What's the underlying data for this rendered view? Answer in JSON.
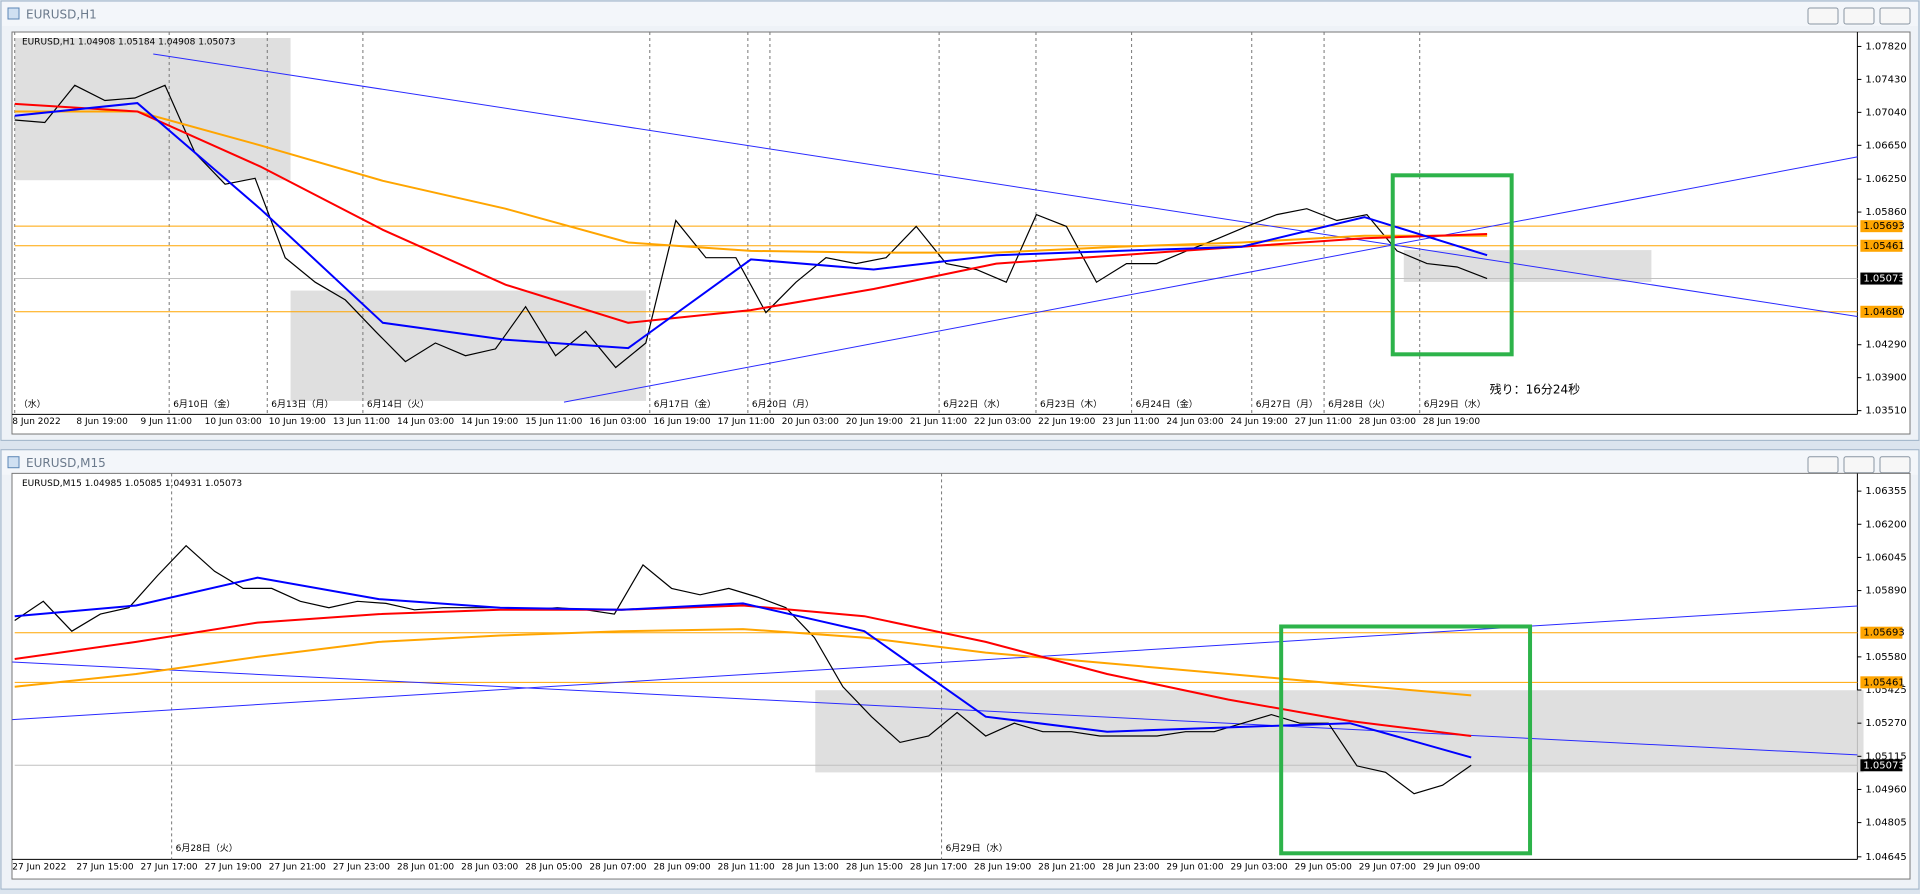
{
  "chart_data": [
    {
      "type": "line",
      "window_title": "EURUSD,H1",
      "info": "EURUSD,H1  1.04908 1.05184 1.04908 1.05073",
      "countdown": "残り：16分24秒",
      "ylim": [
        1.0348,
        1.0792
      ],
      "yticks": [
        {
          "value": 1.0782,
          "label": "1.07820"
        },
        {
          "value": 1.0743,
          "label": "1.07430"
        },
        {
          "value": 1.0704,
          "label": "1.07040"
        },
        {
          "value": 1.0665,
          "label": "1.06650"
        },
        {
          "value": 1.0625,
          "label": "1.06250"
        },
        {
          "value": 1.0586,
          "label": "1.05860"
        },
        {
          "value": 1.0429,
          "label": "1.04290"
        },
        {
          "value": 1.039,
          "label": "1.03900"
        },
        {
          "value": 1.0351,
          "label": "1.03510"
        }
      ],
      "levels": [
        {
          "value": 1.05693,
          "label": "1.05693"
        },
        {
          "value": 1.05461,
          "label": "1.05461"
        },
        {
          "value": 1.0468,
          "label": "1.04680"
        }
      ],
      "current": {
        "value": 1.05073,
        "label": "1.05073"
      },
      "x_labels": [
        "8 Jun 2022",
        "8 Jun 19:00",
        "9 Jun 11:00",
        "10 Jun 03:00",
        "10 Jun 19:00",
        "13 Jun 11:00",
        "14 Jun 03:00",
        "14 Jun 19:00",
        "15 Jun 11:00",
        "16 Jun 03:00",
        "16 Jun 19:00",
        "17 Jun 11:00",
        "20 Jun 03:00",
        "20 Jun 19:00",
        "21 Jun 11:00",
        "22 Jun 03:00",
        "22 Jun 19:00",
        "23 Jun 11:00",
        "24 Jun 03:00",
        "24 Jun 19:00",
        "27 Jun 11:00",
        "28 Jun 03:00",
        "28 Jun 19:00"
      ],
      "date_labels": [
        "（水）",
        "6月10日（金）",
        "6月13日（月）",
        "6月14日（火）",
        "6月17日（金）",
        "6月20日（月）",
        "6月22日（水）",
        "6月23日（木）",
        "6月24日（金）",
        "6月27日（月）",
        "6月28日（火）",
        "6月29日（水）"
      ],
      "series": [
        {
          "color": "#000000",
          "values": [
            1.0695,
            1.0692,
            1.0736,
            1.0718,
            1.0721,
            1.0736,
            1.0656,
            1.0619,
            1.0626,
            1.0532,
            1.0503,
            1.0482,
            1.0445,
            1.0409,
            1.0431,
            1.0416,
            1.0424,
            1.0474,
            1.0416,
            1.0445,
            1.0402,
            1.0431,
            1.0576,
            1.0532,
            1.0532,
            1.0467,
            1.0503,
            1.0532,
            1.0525,
            1.0532,
            1.0569,
            1.0525,
            1.0518,
            1.0503,
            1.0583,
            1.0569,
            1.0503,
            1.0525,
            1.0525,
            1.054,
            1.0554,
            1.0569,
            1.0583,
            1.059,
            1.0576,
            1.0583,
            1.054,
            1.0525,
            1.0521,
            1.05073
          ]
        },
        {
          "color": "#ffa500",
          "values": [
            1.0705,
            1.0705,
            1.0665,
            1.0623,
            1.059,
            1.055,
            1.054,
            1.0538,
            1.0538,
            1.0545,
            1.055,
            1.0558,
            1.0558
          ]
        },
        {
          "color": "#ff0000",
          "values": [
            1.0714,
            1.0705,
            1.064,
            1.0565,
            1.05,
            1.0455,
            1.047,
            1.0495,
            1.0525,
            1.0535,
            1.0545,
            1.0555,
            1.056
          ]
        },
        {
          "color": "#0000ff",
          "values": [
            1.07,
            1.0715,
            1.059,
            1.0455,
            1.0435,
            1.0425,
            1.053,
            1.0518,
            1.0535,
            1.054,
            1.0545,
            1.058,
            1.0535
          ]
        }
      ]
    },
    {
      "type": "line",
      "window_title": "EURUSD,M15",
      "info": "EURUSD,M15  1.04985 1.05085 1.04931 1.05073",
      "ylim": [
        1.0465,
        1.0641
      ],
      "yticks": [
        {
          "value": 1.06355,
          "label": "1.06355"
        },
        {
          "value": 1.062,
          "label": "1.06200"
        },
        {
          "value": 1.06045,
          "label": "1.06045"
        },
        {
          "value": 1.0589,
          "label": "1.05890"
        },
        {
          "value": 1.0558,
          "label": "1.05580"
        },
        {
          "value": 1.05425,
          "label": "1.05425"
        },
        {
          "value": 1.0527,
          "label": "1.05270"
        },
        {
          "value": 1.05115,
          "label": "1.05115"
        },
        {
          "value": 1.0496,
          "label": "1.04960"
        },
        {
          "value": 1.04805,
          "label": "1.04805"
        },
        {
          "value": 1.04645,
          "label": "1.04645"
        }
      ],
      "levels": [
        {
          "value": 1.05693,
          "label": "1.05693"
        },
        {
          "value": 1.05461,
          "label": "1.05461"
        }
      ],
      "current": {
        "value": 1.05073,
        "label": "1.05073"
      },
      "x_labels": [
        "27 Jun 2022",
        "27 Jun 15:00",
        "27 Jun 17:00",
        "27 Jun 19:00",
        "27 Jun 21:00",
        "27 Jun 23:00",
        "28 Jun 01:00",
        "28 Jun 03:00",
        "28 Jun 05:00",
        "28 Jun 07:00",
        "28 Jun 09:00",
        "28 Jun 11:00",
        "28 Jun 13:00",
        "28 Jun 15:00",
        "28 Jun 17:00",
        "28 Jun 19:00",
        "28 Jun 21:00",
        "28 Jun 23:00",
        "29 Jun 01:00",
        "29 Jun 03:00",
        "29 Jun 05:00",
        "29 Jun 07:00",
        "29 Jun 09:00"
      ],
      "date_labels": [
        "6月28日（火）",
        "6月29日（水）"
      ],
      "series": [
        {
          "color": "#000000",
          "values": [
            1.0575,
            1.0584,
            1.057,
            1.0578,
            1.0581,
            1.0596,
            1.061,
            1.0598,
            1.059,
            1.059,
            1.0584,
            1.0581,
            1.0584,
            1.0583,
            1.058,
            1.0581,
            1.0581,
            1.0581,
            1.058,
            1.0581,
            1.058,
            1.0578,
            1.0601,
            1.059,
            1.0587,
            1.059,
            1.0586,
            1.0581,
            1.0567,
            1.0544,
            1.053,
            1.0518,
            1.0521,
            1.0532,
            1.0521,
            1.0527,
            1.0523,
            1.0523,
            1.0521,
            1.0521,
            1.0521,
            1.0523,
            1.0523,
            1.0527,
            1.0531,
            1.0527,
            1.0527,
            1.0507,
            1.0504,
            1.0494,
            1.0498,
            1.05073
          ]
        },
        {
          "color": "#ffa500",
          "values": [
            1.0544,
            1.055,
            1.0558,
            1.0565,
            1.0568,
            1.057,
            1.0571,
            1.0567,
            1.056,
            1.0555,
            1.055,
            1.0545,
            1.054
          ]
        },
        {
          "color": "#ff0000",
          "values": [
            1.0557,
            1.0565,
            1.0574,
            1.0578,
            1.058,
            1.058,
            1.0582,
            1.0577,
            1.0565,
            1.055,
            1.0538,
            1.0528,
            1.0521
          ]
        },
        {
          "color": "#0000ff",
          "values": [
            1.0577,
            1.0582,
            1.0595,
            1.0585,
            1.0581,
            1.058,
            1.0583,
            1.057,
            1.053,
            1.0523,
            1.0525,
            1.0527,
            1.0511
          ]
        }
      ]
    }
  ]
}
